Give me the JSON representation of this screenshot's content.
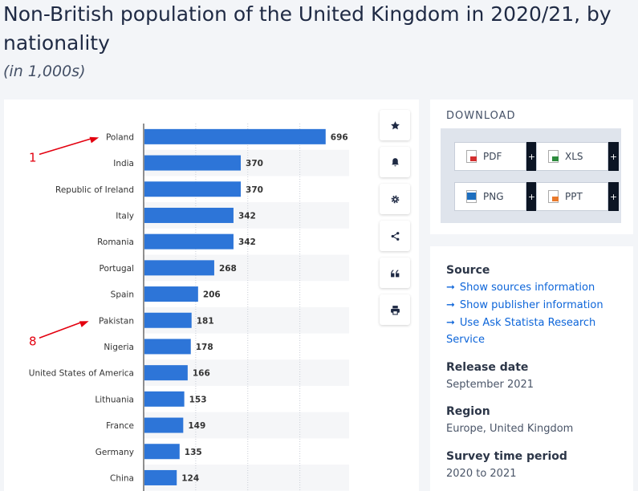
{
  "header": {
    "title": "Non-British population of the United Kingdom in 2020/21, by nationality",
    "subtitle": "(in 1,000s)"
  },
  "chart_data": {
    "type": "bar",
    "orientation": "horizontal",
    "title": "Non-British population of the United Kingdom in 2020/21, by nationality",
    "unit": "in 1,000s",
    "categories": [
      "Poland",
      "India",
      "Republic of Ireland",
      "Italy",
      "Romania",
      "Portugal",
      "Spain",
      "Pakistan",
      "Nigeria",
      "United States of America",
      "Lithuania",
      "France",
      "Germany",
      "China"
    ],
    "values": [
      696,
      370,
      370,
      342,
      342,
      268,
      206,
      181,
      178,
      166,
      153,
      149,
      135,
      124
    ],
    "xlim": [
      0,
      800
    ],
    "grid": true,
    "bar_color": "#2d75d8",
    "annotations": [
      {
        "label": "1",
        "points_to": "Poland",
        "color": "#e3000f"
      },
      {
        "label": "8",
        "points_to": "Pakistan",
        "color": "#e3000f"
      }
    ]
  },
  "toolbar": {
    "items": [
      {
        "name": "star-icon"
      },
      {
        "name": "bell-icon"
      },
      {
        "name": "gear-icon"
      },
      {
        "name": "share-icon"
      },
      {
        "name": "quote-icon"
      },
      {
        "name": "print-icon"
      }
    ]
  },
  "download": {
    "title": "DOWNLOAD",
    "buttons": [
      {
        "label": "PDF",
        "color": "#d32f2f"
      },
      {
        "label": "XLS",
        "color": "#2e8b3e"
      },
      {
        "label": "PNG",
        "color": "#1e6fbf"
      },
      {
        "label": "PPT",
        "color": "#e8792b"
      }
    ],
    "plus": "+"
  },
  "info": {
    "source_heading": "Source",
    "links": [
      "Show sources information",
      "Show publisher information",
      "Use Ask Statista Research",
      "Service"
    ],
    "release_heading": "Release date",
    "release_value": "September 2021",
    "region_heading": "Region",
    "region_value": "Europe, United Kingdom",
    "survey_heading": "Survey time period",
    "survey_value": "2020 to 2021"
  }
}
